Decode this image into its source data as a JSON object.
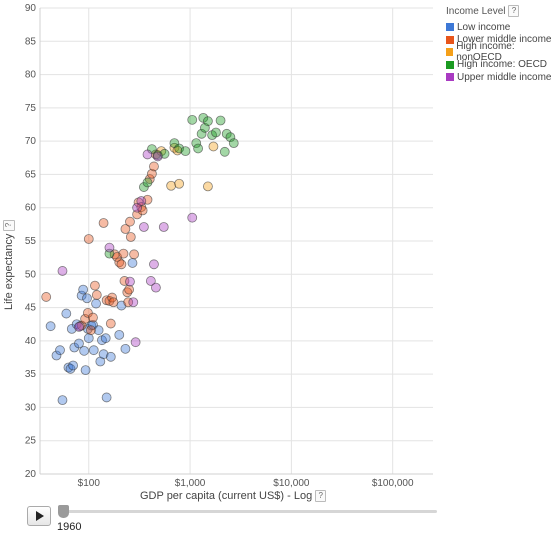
{
  "chart_data": {
    "type": "scatter",
    "xlabel": "GDP per capita (current US$) - Log",
    "ylabel": "Life expectancy",
    "xscale": "log",
    "xlim": [
      33,
      250000
    ],
    "ylim": [
      20,
      90
    ],
    "xticks": [
      {
        "value": 100,
        "label": "$100"
      },
      {
        "value": 1000,
        "label": "$1,000"
      },
      {
        "value": 10000,
        "label": "$10,000"
      },
      {
        "value": 100000,
        "label": "$100,000"
      }
    ],
    "yticks": [
      20,
      25,
      30,
      35,
      40,
      45,
      50,
      55,
      60,
      65,
      70,
      75,
      80,
      85,
      90
    ],
    "grid": true,
    "legend": {
      "title": "Income Level",
      "help": "?",
      "position": "top-right"
    },
    "series": [
      {
        "name": "Low income",
        "color": "#3d78d6",
        "points": [
          [
            42,
            42.2
          ],
          [
            48,
            37.8
          ],
          [
            52,
            38.6
          ],
          [
            55,
            31.1
          ],
          [
            60,
            44.1
          ],
          [
            63,
            36.0
          ],
          [
            66,
            35.8
          ],
          [
            68,
            41.8
          ],
          [
            70,
            36.3
          ],
          [
            72,
            39.0
          ],
          [
            76,
            42.5
          ],
          [
            80,
            39.6
          ],
          [
            82,
            42.2
          ],
          [
            85,
            46.8
          ],
          [
            88,
            47.7
          ],
          [
            90,
            38.5
          ],
          [
            93,
            35.6
          ],
          [
            96,
            46.4
          ],
          [
            98,
            41.8
          ],
          [
            100,
            40.4
          ],
          [
            106,
            42.3
          ],
          [
            110,
            42.4
          ],
          [
            112,
            38.6
          ],
          [
            118,
            45.6
          ],
          [
            125,
            41.6
          ],
          [
            130,
            36.9
          ],
          [
            135,
            40.1
          ],
          [
            140,
            38.0
          ],
          [
            147,
            40.4
          ],
          [
            150,
            31.5
          ],
          [
            165,
            37.6
          ],
          [
            200,
            40.9
          ],
          [
            210,
            45.3
          ],
          [
            230,
            38.8
          ],
          [
            270,
            51.7
          ]
        ]
      },
      {
        "name": "Lower middle income",
        "color": "#e8551b",
        "points": [
          [
            38,
            46.6
          ],
          [
            85,
            42.3
          ],
          [
            92,
            43.3
          ],
          [
            98,
            44.2
          ],
          [
            100,
            55.3
          ],
          [
            105,
            41.6
          ],
          [
            110,
            43.5
          ],
          [
            115,
            48.3
          ],
          [
            120,
            46.9
          ],
          [
            140,
            57.7
          ],
          [
            150,
            46.1
          ],
          [
            160,
            46.0
          ],
          [
            165,
            42.6
          ],
          [
            170,
            46.5
          ],
          [
            175,
            45.8
          ],
          [
            180,
            53.0
          ],
          [
            190,
            52.6
          ],
          [
            200,
            51.8
          ],
          [
            210,
            51.5
          ],
          [
            220,
            53.1
          ],
          [
            225,
            49.0
          ],
          [
            230,
            56.8
          ],
          [
            240,
            47.3
          ],
          [
            245,
            45.8
          ],
          [
            250,
            47.7
          ],
          [
            255,
            57.9
          ],
          [
            260,
            55.6
          ],
          [
            280,
            53.0
          ],
          [
            300,
            59.0
          ],
          [
            310,
            60.8
          ],
          [
            330,
            60.1
          ],
          [
            340,
            59.6
          ],
          [
            380,
            61.2
          ],
          [
            400,
            64.3
          ],
          [
            420,
            65.1
          ],
          [
            440,
            66.2
          ],
          [
            460,
            68.0
          ]
        ]
      },
      {
        "name": "High income: nonOECD",
        "color": "#f5a019",
        "points": [
          [
            520,
            68.5
          ],
          [
            650,
            63.3
          ],
          [
            700,
            69.0
          ],
          [
            750,
            68.6
          ],
          [
            780,
            63.6
          ],
          [
            1500,
            63.2
          ],
          [
            1700,
            69.2
          ]
        ]
      },
      {
        "name": "High income: OECD",
        "color": "#1a9a21",
        "points": [
          [
            160,
            53.1
          ],
          [
            350,
            63.1
          ],
          [
            380,
            63.8
          ],
          [
            420,
            68.8
          ],
          [
            480,
            67.9
          ],
          [
            560,
            68.1
          ],
          [
            700,
            69.7
          ],
          [
            780,
            68.9
          ],
          [
            900,
            68.5
          ],
          [
            1050,
            73.2
          ],
          [
            1150,
            69.7
          ],
          [
            1200,
            68.9
          ],
          [
            1300,
            71.1
          ],
          [
            1350,
            73.5
          ],
          [
            1400,
            72.0
          ],
          [
            1500,
            73.0
          ],
          [
            1650,
            70.9
          ],
          [
            1800,
            71.3
          ],
          [
            2000,
            73.1
          ],
          [
            2200,
            68.4
          ],
          [
            2300,
            71.1
          ],
          [
            2500,
            70.6
          ],
          [
            2700,
            69.7
          ]
        ]
      },
      {
        "name": "Upper middle income",
        "color": "#a93ac2",
        "points": [
          [
            55,
            50.5
          ],
          [
            80,
            42.1
          ],
          [
            160,
            54.0
          ],
          [
            255,
            48.9
          ],
          [
            275,
            45.8
          ],
          [
            290,
            39.8
          ],
          [
            300,
            60.0
          ],
          [
            330,
            61.0
          ],
          [
            350,
            57.1
          ],
          [
            380,
            68.0
          ],
          [
            410,
            49.0
          ],
          [
            440,
            51.5
          ],
          [
            460,
            48.0
          ],
          [
            480,
            67.7
          ],
          [
            550,
            57.1
          ],
          [
            1050,
            58.5
          ]
        ]
      }
    ]
  },
  "timeline": {
    "year": "1960",
    "play_label": "Play"
  }
}
